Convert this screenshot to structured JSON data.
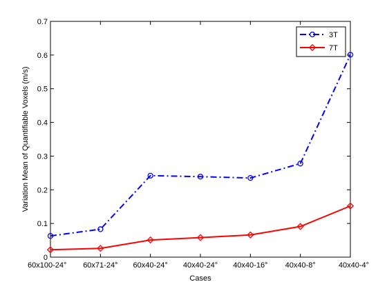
{
  "chart_data": {
    "type": "line",
    "xlabel": "Cases",
    "ylabel": "Variation Mean of Quantifiable Voxels (m/s)",
    "categories": [
      "60x100-24°",
      "60x71-24°",
      "60x40-24°",
      "40x40-24°",
      "40x40-16°",
      "40x40-8°",
      "40x40-4°"
    ],
    "ylim": [
      0,
      0.7
    ],
    "yticks": [
      0,
      0.1,
      0.2,
      0.3,
      0.4,
      0.5,
      0.6,
      0.7
    ],
    "ytick_labels": [
      "0",
      "0.1",
      "0.2",
      "0.3",
      "0.4",
      "0.5",
      "0.6",
      "0.7"
    ],
    "grid": false,
    "legend_position": "top-right",
    "series": [
      {
        "name": "3T",
        "color": "#0000ff",
        "line_style": "dash-dot",
        "marker": "circle",
        "values": [
          0.063,
          0.083,
          0.242,
          0.239,
          0.235,
          0.278,
          0.601
        ]
      },
      {
        "name": "7T",
        "color": "#ff0000",
        "line_style": "solid",
        "marker": "diamond",
        "values": [
          0.022,
          0.026,
          0.051,
          0.058,
          0.066,
          0.091,
          0.152
        ]
      }
    ]
  }
}
